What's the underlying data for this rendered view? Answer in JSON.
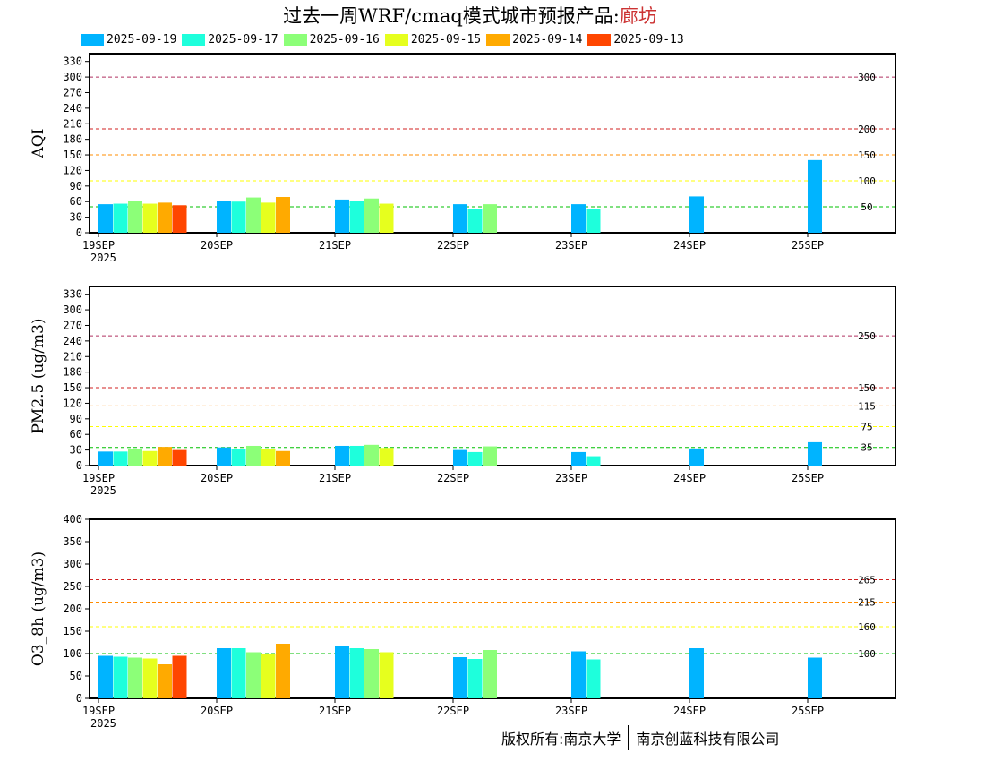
{
  "title": {
    "main": "过去一周WRF/cmaq模式城市预报产品:",
    "city": "廊坊"
  },
  "colors": {
    "2025-09-19": "#00b4ff",
    "2025-09-17": "#1effdc",
    "2025-09-16": "#8cff78",
    "2025-09-15": "#e6ff1e",
    "2025-09-14": "#ffaa00",
    "2025-09-13": "#ff4600"
  },
  "legend": [
    "2025-09-19",
    "2025-09-17",
    "2025-09-16",
    "2025-09-15",
    "2025-09-14",
    "2025-09-13"
  ],
  "footer": {
    "left": "版权所有:南京大学",
    "right": "南京创蓝科技有限公司"
  },
  "chart_data": [
    {
      "type": "bar",
      "ylabel": "AQI",
      "ylim": [
        0,
        345
      ],
      "yticks": [
        0,
        30,
        60,
        90,
        120,
        150,
        180,
        210,
        240,
        270,
        300,
        330
      ],
      "categories": [
        "19SEP",
        "20SEP",
        "21SEP",
        "22SEP",
        "23SEP",
        "24SEP",
        "25SEP"
      ],
      "x_year": "2025",
      "thresholds": [
        {
          "value": 300,
          "label": "300",
          "color": "#b03060"
        },
        {
          "value": 200,
          "label": "200",
          "color": "#d02020"
        },
        {
          "value": 150,
          "label": "150",
          "color": "#ff8c00"
        },
        {
          "value": 100,
          "label": "100",
          "color": "#ffff00"
        },
        {
          "value": 50,
          "label": "50",
          "color": "#00c000"
        }
      ],
      "series": [
        {
          "name": "2025-09-19",
          "values": [
            55,
            62,
            64,
            55,
            55,
            70,
            140
          ]
        },
        {
          "name": "2025-09-17",
          "values": [
            56,
            60,
            61,
            45,
            45,
            null,
            null
          ]
        },
        {
          "name": "2025-09-16",
          "values": [
            62,
            68,
            66,
            55,
            null,
            null,
            null
          ]
        },
        {
          "name": "2025-09-15",
          "values": [
            56,
            58,
            56,
            null,
            null,
            null,
            null
          ]
        },
        {
          "name": "2025-09-14",
          "values": [
            58,
            69,
            null,
            null,
            null,
            null,
            null
          ]
        },
        {
          "name": "2025-09-13",
          "values": [
            53,
            null,
            null,
            null,
            null,
            null,
            null
          ]
        }
      ]
    },
    {
      "type": "bar",
      "ylabel": "PM2.5 (ug/m3)",
      "ylim": [
        0,
        345
      ],
      "yticks": [
        0,
        30,
        60,
        90,
        120,
        150,
        180,
        210,
        240,
        270,
        300,
        330
      ],
      "categories": [
        "19SEP",
        "20SEP",
        "21SEP",
        "22SEP",
        "23SEP",
        "24SEP",
        "25SEP"
      ],
      "x_year": "2025",
      "thresholds": [
        {
          "value": 250,
          "label": "250",
          "color": "#b03060"
        },
        {
          "value": 150,
          "label": "150",
          "color": "#d02020"
        },
        {
          "value": 115,
          "label": "115",
          "color": "#ff8c00"
        },
        {
          "value": 75,
          "label": "75",
          "color": "#ffff00"
        },
        {
          "value": 35,
          "label": "35",
          "color": "#00c000"
        }
      ],
      "series": [
        {
          "name": "2025-09-19",
          "values": [
            27,
            35,
            38,
            30,
            26,
            33,
            45
          ]
        },
        {
          "name": "2025-09-17",
          "values": [
            27,
            32,
            38,
            26,
            18,
            null,
            null
          ]
        },
        {
          "name": "2025-09-16",
          "values": [
            32,
            38,
            40,
            37,
            null,
            null,
            null
          ]
        },
        {
          "name": "2025-09-15",
          "values": [
            28,
            32,
            34,
            null,
            null,
            null,
            null
          ]
        },
        {
          "name": "2025-09-14",
          "values": [
            36,
            28,
            null,
            null,
            null,
            null,
            null
          ]
        },
        {
          "name": "2025-09-13",
          "values": [
            30,
            null,
            null,
            null,
            null,
            null,
            null
          ]
        }
      ]
    },
    {
      "type": "bar",
      "ylabel": "O3_8h (ug/m3)",
      "ylim": [
        0,
        400
      ],
      "yticks": [
        0,
        50,
        100,
        150,
        200,
        250,
        300,
        350,
        400
      ],
      "categories": [
        "19SEP",
        "20SEP",
        "21SEP",
        "22SEP",
        "23SEP",
        "24SEP",
        "25SEP"
      ],
      "x_year": "2025",
      "thresholds": [
        {
          "value": 265,
          "label": "265",
          "color": "#d02020"
        },
        {
          "value": 215,
          "label": "215",
          "color": "#ff8c00"
        },
        {
          "value": 160,
          "label": "160",
          "color": "#ffff00"
        },
        {
          "value": 100,
          "label": "100",
          "color": "#00c000"
        }
      ],
      "series": [
        {
          "name": "2025-09-19",
          "values": [
            95,
            112,
            118,
            92,
            105,
            112,
            91
          ]
        },
        {
          "name": "2025-09-17",
          "values": [
            93,
            112,
            112,
            88,
            87,
            null,
            null
          ]
        },
        {
          "name": "2025-09-16",
          "values": [
            91,
            103,
            110,
            108,
            null,
            null,
            null
          ]
        },
        {
          "name": "2025-09-15",
          "values": [
            89,
            100,
            103,
            null,
            null,
            null,
            null
          ]
        },
        {
          "name": "2025-09-14",
          "values": [
            76,
            122,
            null,
            null,
            null,
            null,
            null
          ]
        },
        {
          "name": "2025-09-13",
          "values": [
            95,
            null,
            null,
            null,
            null,
            null,
            null
          ]
        }
      ]
    }
  ]
}
